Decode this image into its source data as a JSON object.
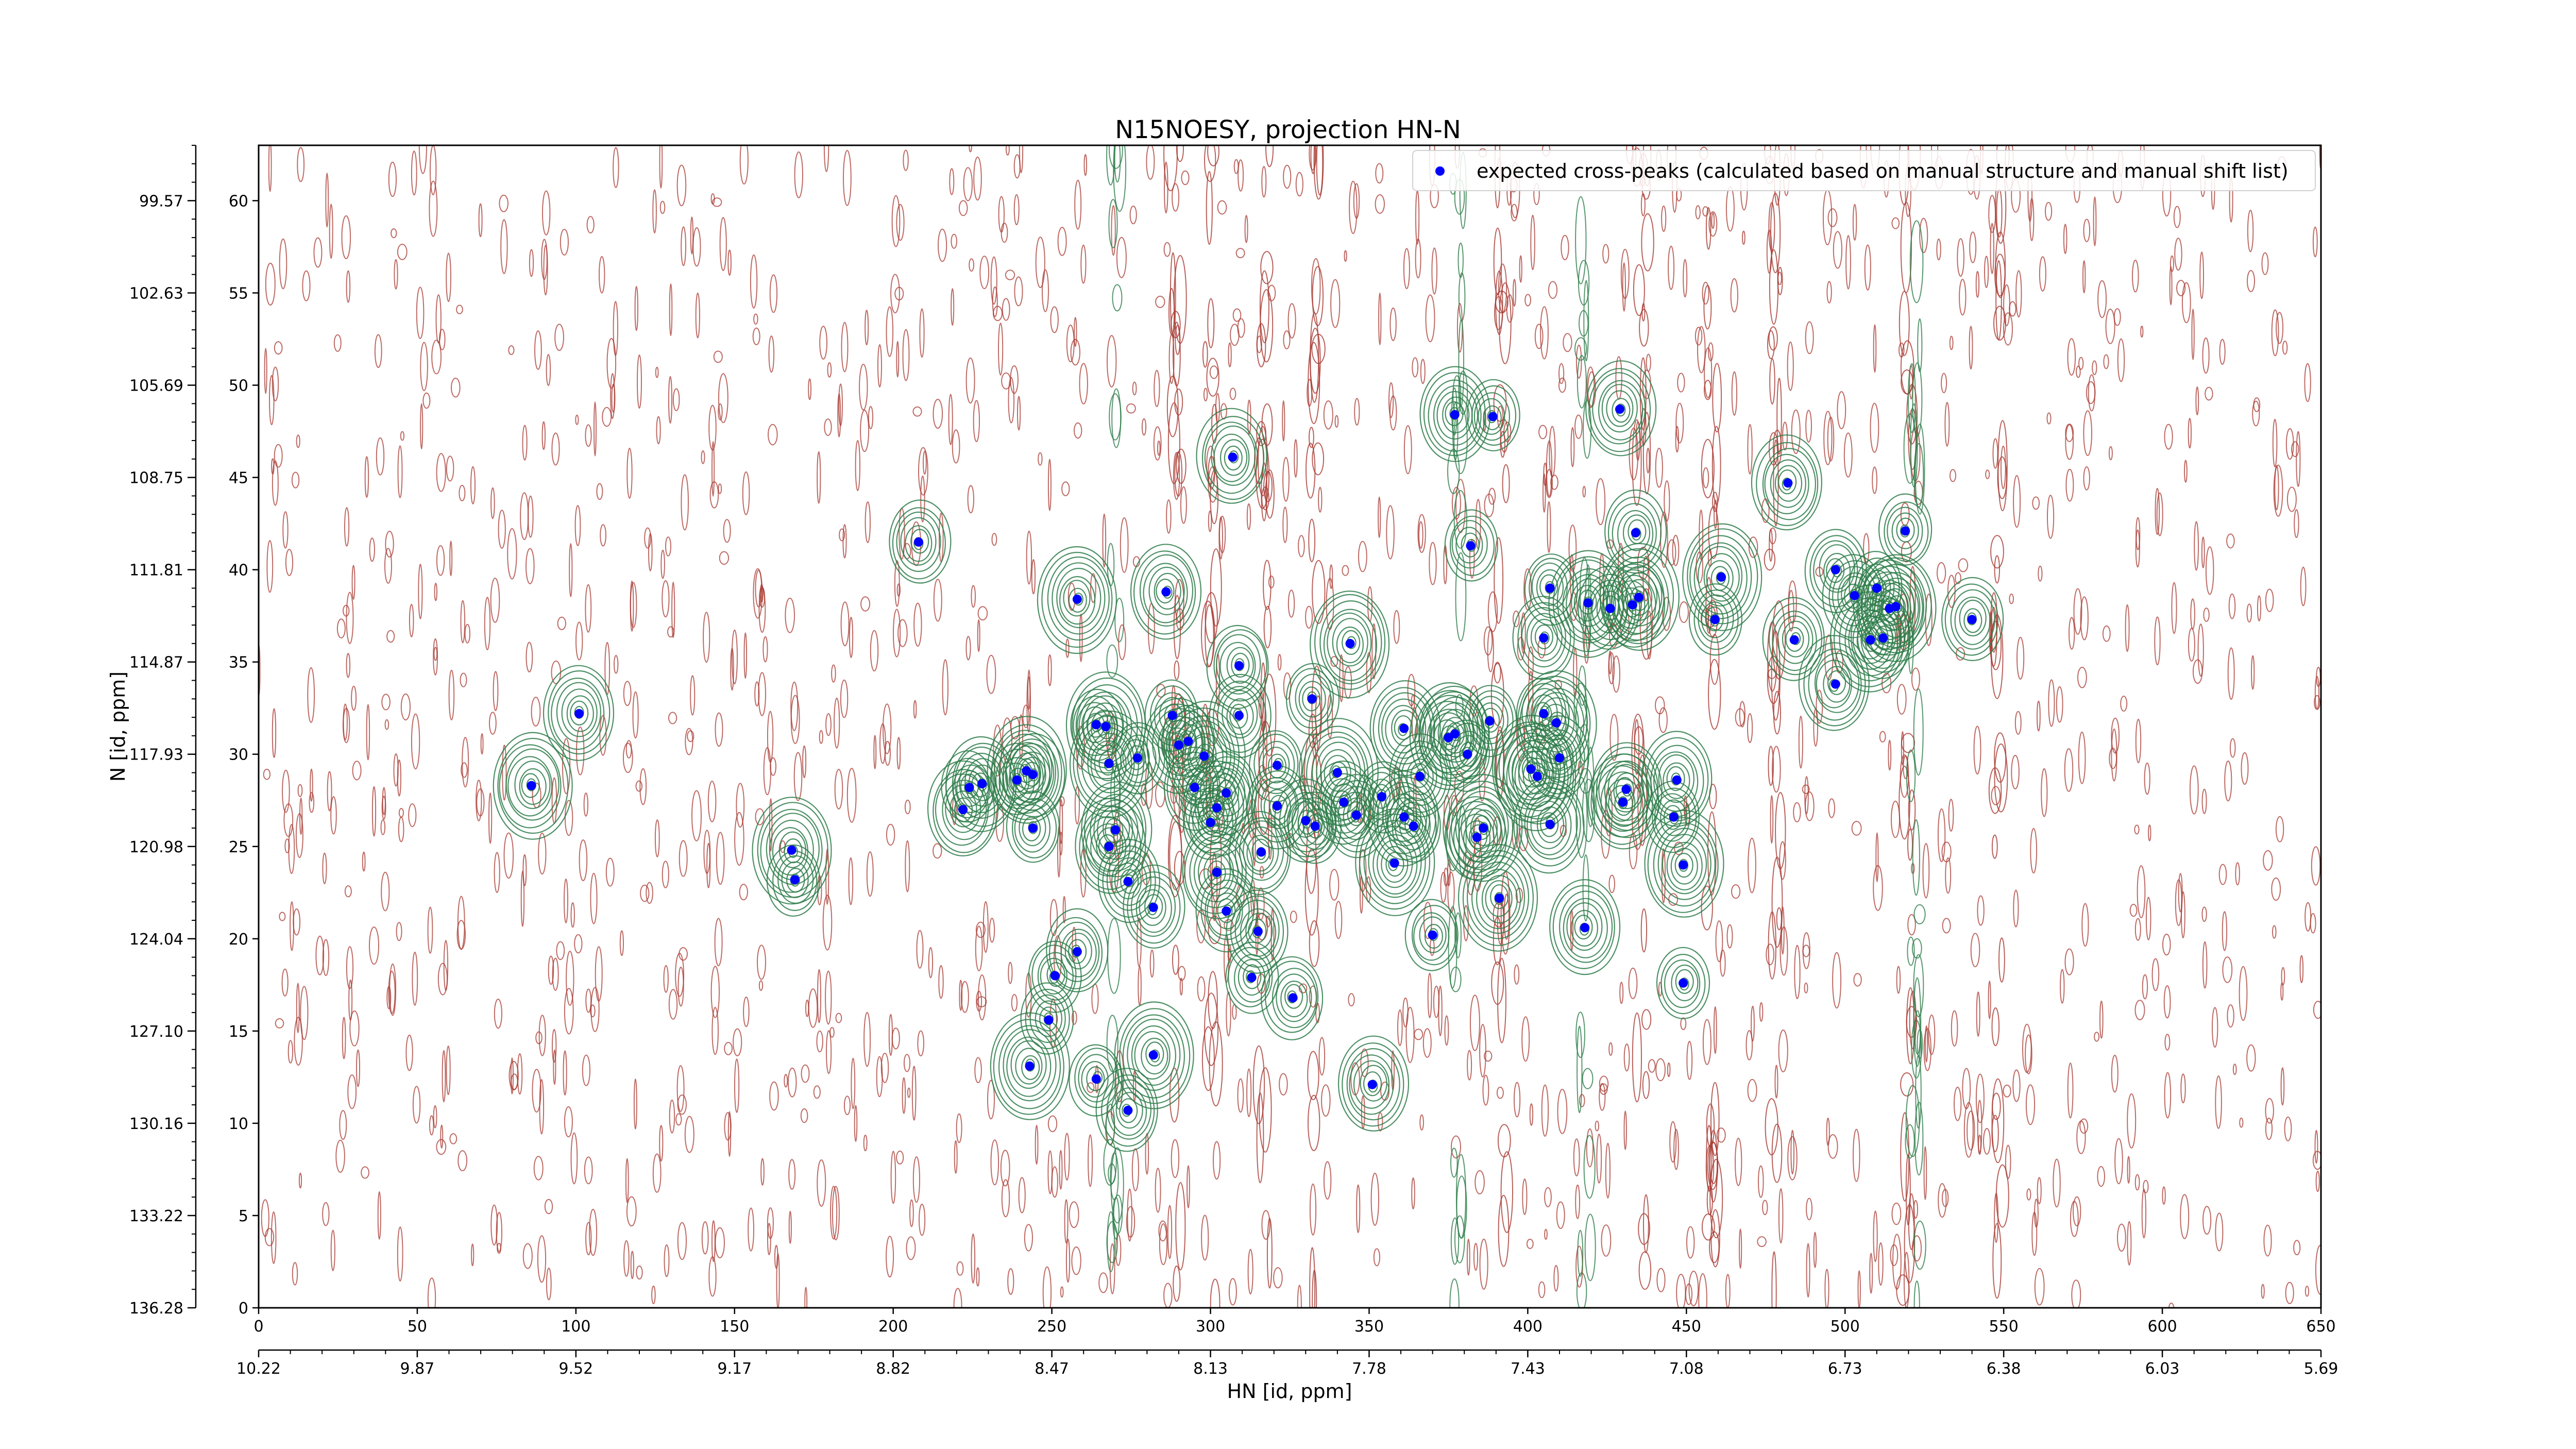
{
  "chart_data": {
    "type": "scatter",
    "title": "N15NOESY, projection HN-N",
    "xlabel": "HN [id, ppm]",
    "ylabel": "N [id, ppm]",
    "xlim": [
      0,
      650
    ],
    "ylim": [
      0,
      63
    ],
    "grid": false,
    "legend_position": "top-right",
    "x_ticks": [
      0,
      50,
      100,
      150,
      200,
      250,
      300,
      350,
      400,
      450,
      500,
      550,
      600,
      650
    ],
    "y_ticks": [
      0,
      5,
      10,
      15,
      20,
      25,
      30,
      35,
      40,
      45,
      50,
      55,
      60
    ],
    "x_ppm_ticks": [
      {
        "pos": 0,
        "label": "10.22"
      },
      {
        "pos": 50,
        "label": "9.87"
      },
      {
        "pos": 100,
        "label": "9.52"
      },
      {
        "pos": 150,
        "label": "9.17"
      },
      {
        "pos": 200,
        "label": "8.82"
      },
      {
        "pos": 250,
        "label": "8.47"
      },
      {
        "pos": 300,
        "label": "8.13"
      },
      {
        "pos": 350,
        "label": "7.78"
      },
      {
        "pos": 400,
        "label": "7.43"
      },
      {
        "pos": 450,
        "label": "7.08"
      },
      {
        "pos": 500,
        "label": "6.73"
      },
      {
        "pos": 550,
        "label": "6.38"
      },
      {
        "pos": 600,
        "label": "6.03"
      },
      {
        "pos": 650,
        "label": "5.69"
      }
    ],
    "y_ppm_ticks": [
      {
        "pos": 0,
        "label": "136.28"
      },
      {
        "pos": 5,
        "label": "133.22"
      },
      {
        "pos": 10,
        "label": "130.16"
      },
      {
        "pos": 15,
        "label": "127.10"
      },
      {
        "pos": 20,
        "label": "124.04"
      },
      {
        "pos": 25,
        "label": "120.98"
      },
      {
        "pos": 30,
        "label": "117.93"
      },
      {
        "pos": 35,
        "label": "114.87"
      },
      {
        "pos": 40,
        "label": "111.81"
      },
      {
        "pos": 45,
        "label": "108.75"
      },
      {
        "pos": 50,
        "label": "105.69"
      },
      {
        "pos": 55,
        "label": "102.63"
      },
      {
        "pos": 60,
        "label": "99.57"
      }
    ],
    "colors": {
      "positive_contour": "#2e7d4a",
      "negative_contour": "#a83a32",
      "peak_marker": "#0000ff"
    },
    "series": [
      {
        "name": "expected cross-peaks (calculated based on manual structure and manual shift list)",
        "color": "#0000ff",
        "marker": "o",
        "points": [
          [
            86,
            28.3
          ],
          [
            101,
            32.2
          ],
          [
            168,
            24.8
          ],
          [
            169,
            23.2
          ],
          [
            208,
            41.5
          ],
          [
            222,
            27.0
          ],
          [
            224,
            28.2
          ],
          [
            228,
            28.4
          ],
          [
            239,
            28.6
          ],
          [
            242,
            29.1
          ],
          [
            244,
            28.9
          ],
          [
            244,
            26.0
          ],
          [
            243,
            13.1
          ],
          [
            249,
            15.6
          ],
          [
            251,
            18.0
          ],
          [
            258,
            19.3
          ],
          [
            258,
            38.4
          ],
          [
            264,
            31.6
          ],
          [
            267,
            31.5
          ],
          [
            268,
            29.5
          ],
          [
            268,
            25.0
          ],
          [
            270,
            25.9
          ],
          [
            274,
            23.1
          ],
          [
            277,
            29.8
          ],
          [
            264,
            12.4
          ],
          [
            274,
            10.7
          ],
          [
            282,
            21.7
          ],
          [
            282,
            13.7
          ],
          [
            286,
            38.8
          ],
          [
            288,
            32.1
          ],
          [
            290,
            30.5
          ],
          [
            293,
            30.7
          ],
          [
            295,
            28.2
          ],
          [
            298,
            29.9
          ],
          [
            300,
            26.3
          ],
          [
            302,
            23.6
          ],
          [
            302,
            27.1
          ],
          [
            305,
            27.9
          ],
          [
            305,
            21.5
          ],
          [
            307,
            46.1
          ],
          [
            309,
            32.1
          ],
          [
            309,
            34.8
          ],
          [
            313,
            17.9
          ],
          [
            315,
            20.4
          ],
          [
            316,
            24.7
          ],
          [
            321,
            29.4
          ],
          [
            321,
            27.2
          ],
          [
            326,
            16.8
          ],
          [
            330,
            26.4
          ],
          [
            332,
            33.0
          ],
          [
            333,
            26.1
          ],
          [
            340,
            29.0
          ],
          [
            342,
            27.4
          ],
          [
            344,
            36.0
          ],
          [
            346,
            26.7
          ],
          [
            351,
            12.1
          ],
          [
            354,
            27.7
          ],
          [
            358,
            24.1
          ],
          [
            361,
            31.4
          ],
          [
            361,
            26.6
          ],
          [
            364,
            26.1
          ],
          [
            366,
            28.8
          ],
          [
            370,
            20.2
          ],
          [
            375,
            30.9
          ],
          [
            377,
            31.1
          ],
          [
            377,
            48.4
          ],
          [
            381,
            30.0
          ],
          [
            382,
            41.3
          ],
          [
            384,
            25.5
          ],
          [
            386,
            26.0
          ],
          [
            388,
            31.8
          ],
          [
            389,
            48.3
          ],
          [
            391,
            22.2
          ],
          [
            401,
            29.2
          ],
          [
            403,
            28.8
          ],
          [
            405,
            32.2
          ],
          [
            405,
            36.3
          ],
          [
            407,
            26.2
          ],
          [
            407,
            39.0
          ],
          [
            409,
            31.7
          ],
          [
            410,
            29.8
          ],
          [
            418,
            20.6
          ],
          [
            419,
            38.2
          ],
          [
            426,
            37.9
          ],
          [
            429,
            48.7
          ],
          [
            430,
            27.4
          ],
          [
            431,
            28.1
          ],
          [
            433,
            38.1
          ],
          [
            434,
            42.0
          ],
          [
            435,
            38.5
          ],
          [
            447,
            28.6
          ],
          [
            446,
            26.6
          ],
          [
            449,
            24.0
          ],
          [
            449,
            17.6
          ],
          [
            459,
            37.3
          ],
          [
            461,
            39.6
          ],
          [
            482,
            44.7
          ],
          [
            484,
            36.2
          ],
          [
            497,
            33.8
          ],
          [
            497,
            40.0
          ],
          [
            503,
            38.6
          ],
          [
            508,
            36.2
          ],
          [
            510,
            39.0
          ],
          [
            512,
            36.3
          ],
          [
            514,
            37.9
          ],
          [
            516,
            38.0
          ],
          [
            519,
            42.1
          ],
          [
            540,
            37.3
          ]
        ]
      }
    ]
  }
}
